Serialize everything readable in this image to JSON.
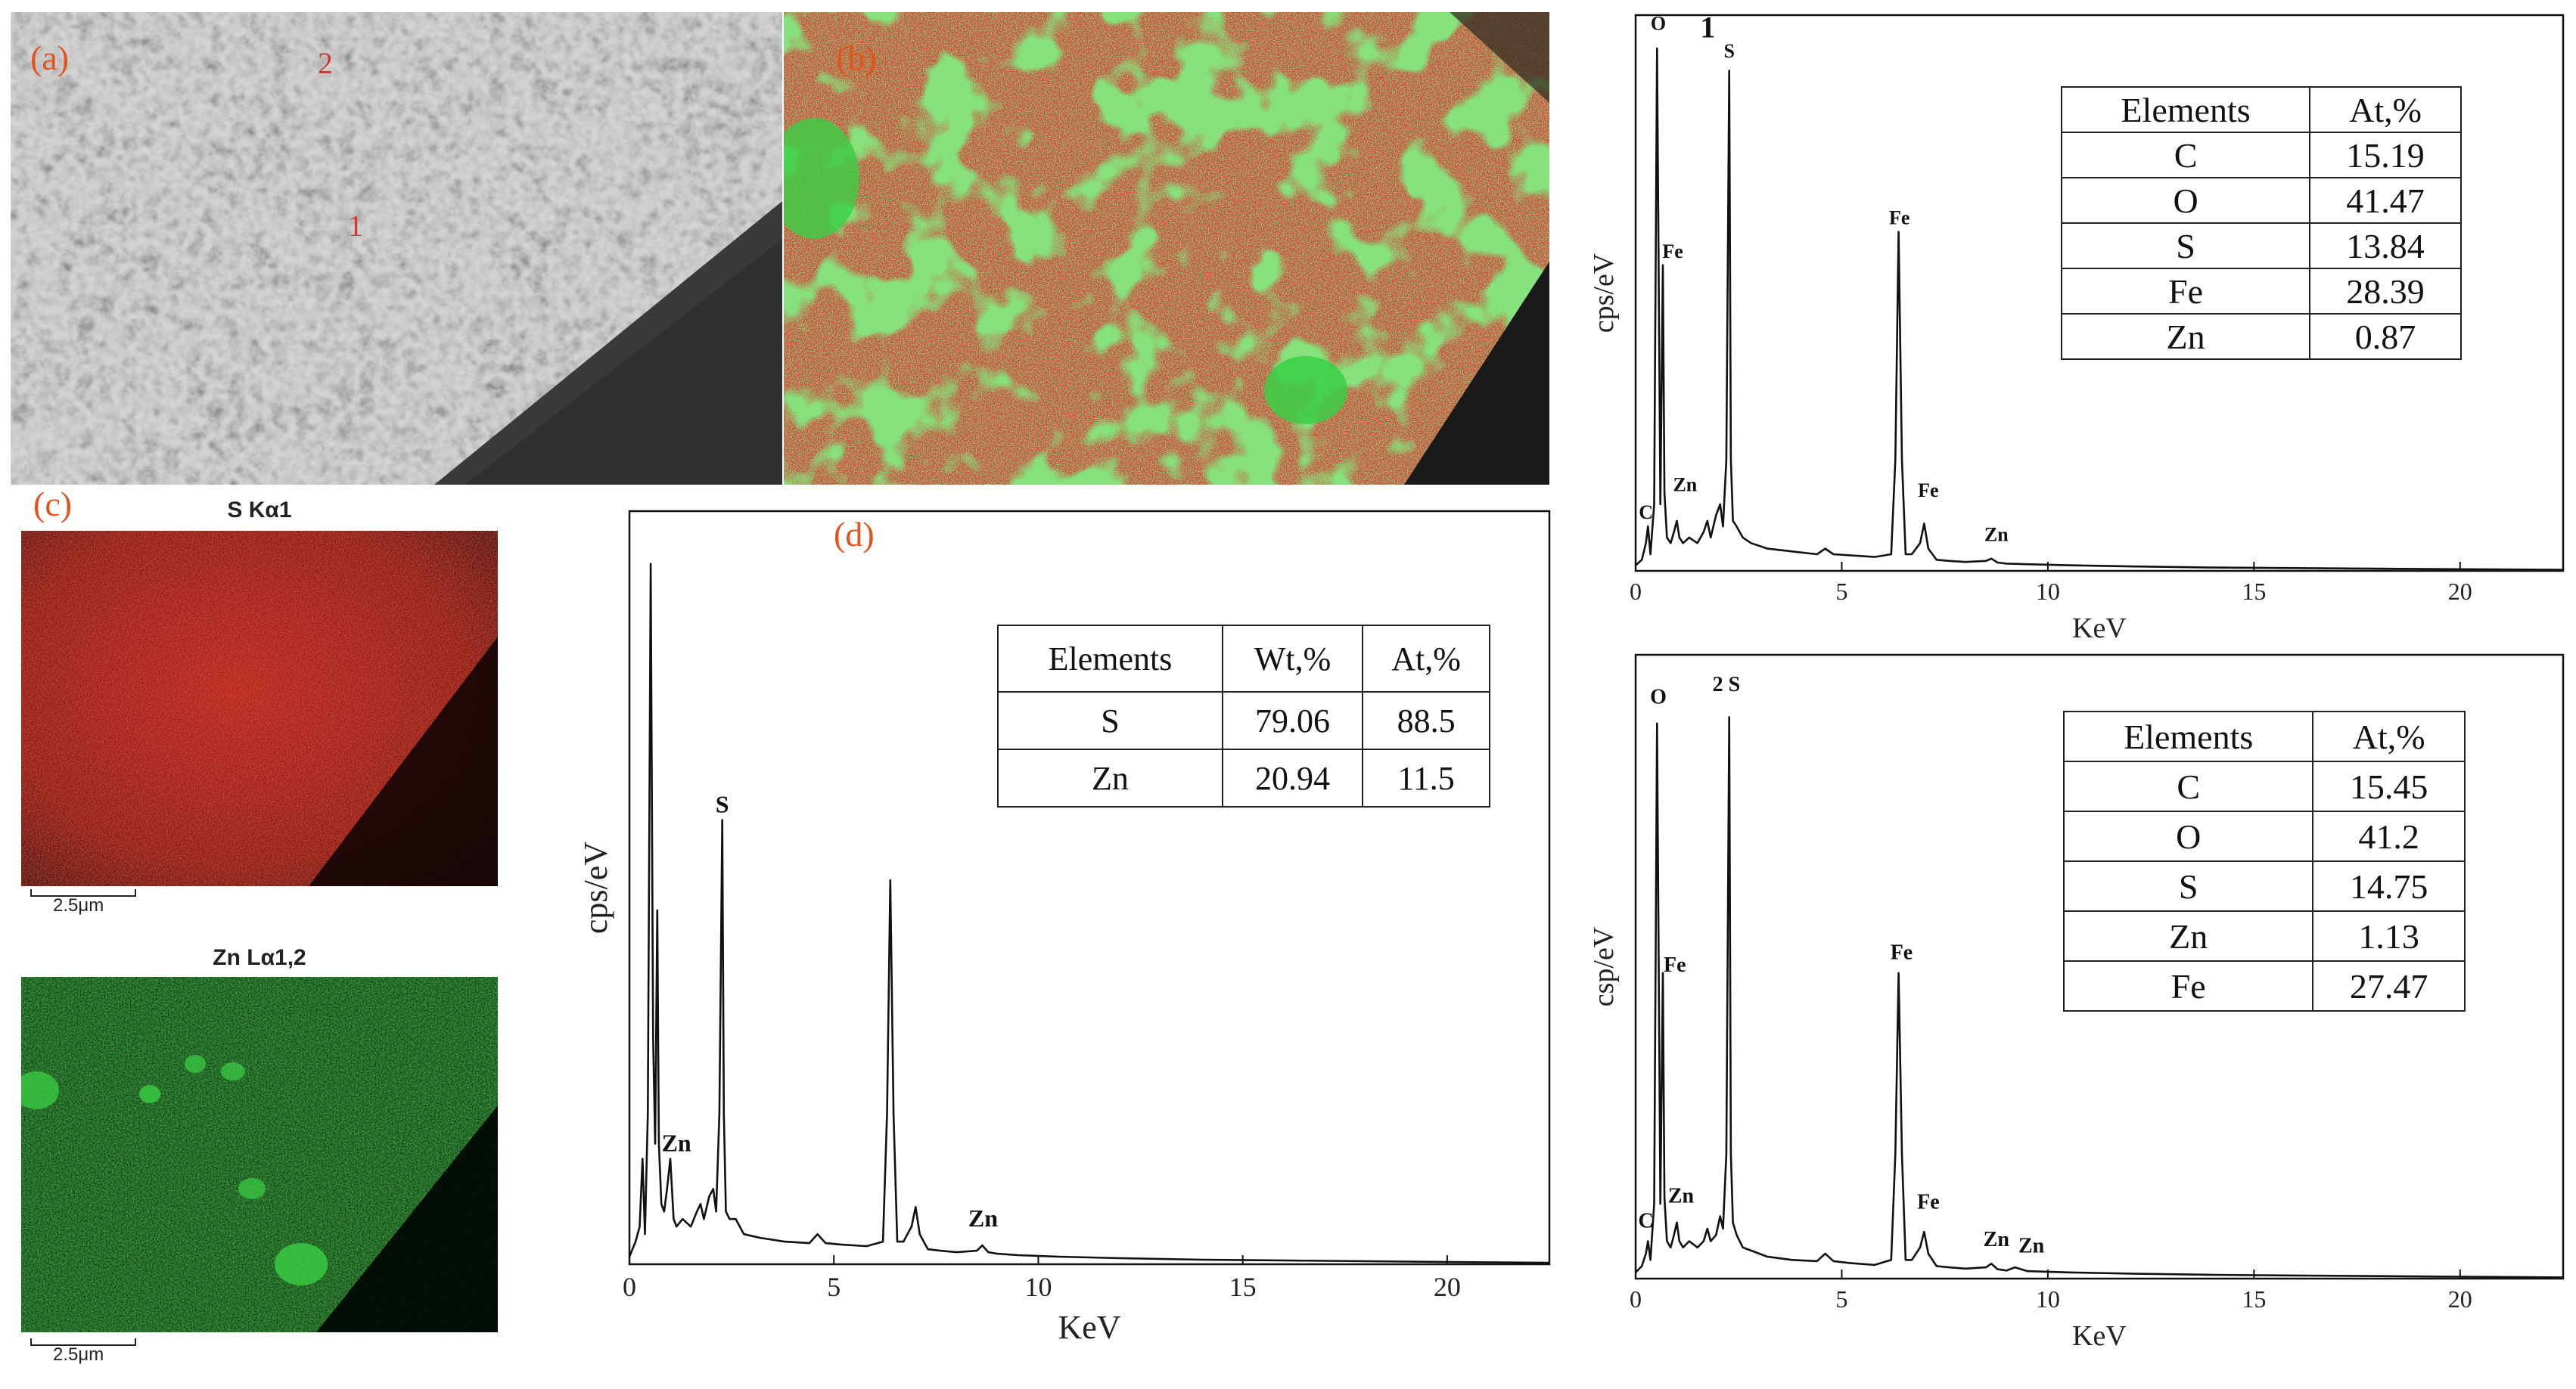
{
  "panel_labels": {
    "a": "(a)",
    "b": "(b)",
    "c": "(c)",
    "d": "(d)"
  },
  "sem_markers": {
    "m1": "1",
    "m2": "2"
  },
  "maps": {
    "s_title": "S Kα1",
    "zn_title": "Zn Lα1,2",
    "scalebar_s": "2.5μm",
    "scalebar_zn": "2.5μm"
  },
  "colors": {
    "panel_label": "#e0541e",
    "map_red": "#c81e12",
    "map_green": "#2ed03a",
    "line": "#111111"
  },
  "table_d": {
    "header": [
      "Elements",
      "Wt,%",
      "At,%"
    ],
    "rows": [
      [
        "S",
        "79.06",
        "88.5"
      ],
      [
        "Zn",
        "20.94",
        "11.5"
      ]
    ]
  },
  "table_1": {
    "header": [
      "Elements",
      "At,%"
    ],
    "rows": [
      [
        "C",
        "15.19"
      ],
      [
        "O",
        "41.47"
      ],
      [
        "S",
        "13.84"
      ],
      [
        "Fe",
        "28.39"
      ],
      [
        "Zn",
        "0.87"
      ]
    ]
  },
  "table_2": {
    "header": [
      "Elements",
      "At,%"
    ],
    "rows": [
      [
        "C",
        "15.45"
      ],
      [
        "O",
        "41.2"
      ],
      [
        "S",
        "14.75"
      ],
      [
        "Zn",
        "1.13"
      ],
      [
        "Fe",
        "27.47"
      ]
    ]
  },
  "chart_data": [
    {
      "id": "d",
      "type": "line",
      "xlabel": "KeV",
      "ylabel": "cps/eV",
      "xlim": [
        0,
        22.5
      ],
      "ylim": [
        0,
        1.0
      ],
      "xticks": [
        0,
        5,
        10,
        15,
        20
      ],
      "x": [
        0.0,
        0.15,
        0.25,
        0.32,
        0.38,
        0.45,
        0.52,
        0.58,
        0.63,
        0.68,
        0.72,
        0.78,
        0.85,
        0.92,
        1.0,
        1.08,
        1.15,
        1.3,
        1.5,
        1.65,
        1.74,
        1.82,
        1.95,
        2.05,
        2.12,
        2.2,
        2.27,
        2.31,
        2.36,
        2.45,
        2.6,
        2.8,
        3.2,
        3.8,
        4.4,
        4.6,
        4.8,
        5.2,
        5.8,
        6.2,
        6.3,
        6.38,
        6.46,
        6.55,
        6.7,
        6.9,
        7.0,
        7.1,
        7.3,
        7.6,
        8.0,
        8.5,
        8.63,
        8.78,
        9.0,
        9.5,
        10.5,
        12,
        14,
        16,
        18,
        20,
        22.5
      ],
      "values": [
        0.01,
        0.03,
        0.05,
        0.14,
        0.04,
        0.2,
        0.93,
        0.3,
        0.16,
        0.47,
        0.16,
        0.08,
        0.07,
        0.1,
        0.14,
        0.06,
        0.05,
        0.06,
        0.05,
        0.07,
        0.08,
        0.06,
        0.09,
        0.1,
        0.07,
        0.2,
        0.59,
        0.2,
        0.07,
        0.06,
        0.06,
        0.04,
        0.035,
        0.03,
        0.028,
        0.04,
        0.028,
        0.026,
        0.024,
        0.03,
        0.2,
        0.51,
        0.2,
        0.03,
        0.03,
        0.05,
        0.076,
        0.04,
        0.02,
        0.018,
        0.016,
        0.018,
        0.025,
        0.016,
        0.014,
        0.012,
        0.01,
        0.008,
        0.006,
        0.005,
        0.004,
        0.003,
        0.002
      ],
      "annotations": [
        {
          "text": "S",
          "x": 2.27,
          "y": 0.59
        },
        {
          "text": "Zn",
          "x": 1.15,
          "y": 0.14
        },
        {
          "text": "Zn",
          "x": 8.65,
          "y": 0.04
        }
      ]
    },
    {
      "id": "spot1",
      "type": "line",
      "title": "1",
      "xlabel": "KeV",
      "ylabel": "cps/eV",
      "xlim": [
        0,
        22.5
      ],
      "ylim": [
        0,
        1.0
      ],
      "xticks": [
        0,
        5,
        10,
        15,
        20
      ],
      "x": [
        0.0,
        0.15,
        0.25,
        0.3,
        0.36,
        0.45,
        0.52,
        0.6,
        0.66,
        0.7,
        0.76,
        0.85,
        0.93,
        1.0,
        1.06,
        1.15,
        1.3,
        1.5,
        1.65,
        1.74,
        1.82,
        1.95,
        2.05,
        2.12,
        2.2,
        2.27,
        2.31,
        2.36,
        2.45,
        2.6,
        2.8,
        3.2,
        3.8,
        4.4,
        4.6,
        4.8,
        5.2,
        5.8,
        6.2,
        6.3,
        6.38,
        6.46,
        6.55,
        6.7,
        6.9,
        7.0,
        7.1,
        7.3,
        7.6,
        8.0,
        8.5,
        8.63,
        8.78,
        9.0,
        9.5,
        10.5,
        12,
        14,
        16,
        18,
        20,
        22.5
      ],
      "values": [
        0.01,
        0.02,
        0.05,
        0.08,
        0.03,
        0.12,
        0.94,
        0.12,
        0.55,
        0.14,
        0.06,
        0.05,
        0.07,
        0.09,
        0.06,
        0.05,
        0.06,
        0.05,
        0.07,
        0.09,
        0.06,
        0.1,
        0.12,
        0.08,
        0.2,
        0.9,
        0.2,
        0.09,
        0.08,
        0.06,
        0.05,
        0.04,
        0.035,
        0.03,
        0.04,
        0.03,
        0.028,
        0.025,
        0.03,
        0.2,
        0.61,
        0.2,
        0.03,
        0.03,
        0.05,
        0.085,
        0.04,
        0.02,
        0.018,
        0.016,
        0.018,
        0.022,
        0.015,
        0.013,
        0.012,
        0.01,
        0.008,
        0.006,
        0.005,
        0.004,
        0.003,
        0.002
      ],
      "annotations": [
        {
          "text": "O",
          "x": 0.55,
          "y": 0.96
        },
        {
          "text": "S",
          "x": 2.27,
          "y": 0.91
        },
        {
          "text": "Fe",
          "x": 0.9,
          "y": 0.55
        },
        {
          "text": "Fe",
          "x": 6.4,
          "y": 0.61
        },
        {
          "text": "Fe",
          "x": 7.1,
          "y": 0.12
        },
        {
          "text": "C",
          "x": 0.25,
          "y": 0.08
        },
        {
          "text": "Zn",
          "x": 1.2,
          "y": 0.13
        },
        {
          "text": "Zn",
          "x": 8.75,
          "y": 0.04
        }
      ]
    },
    {
      "id": "spot2",
      "type": "line",
      "title": "2",
      "xlabel": "KeV",
      "ylabel": "csp/eV",
      "xlim": [
        0,
        22.5
      ],
      "ylim": [
        0,
        1.0
      ],
      "xticks": [
        0,
        5,
        10,
        15,
        20
      ],
      "x": [
        0.0,
        0.15,
        0.25,
        0.3,
        0.36,
        0.45,
        0.52,
        0.6,
        0.66,
        0.7,
        0.76,
        0.85,
        0.93,
        1.0,
        1.06,
        1.15,
        1.3,
        1.5,
        1.65,
        1.74,
        1.82,
        1.95,
        2.05,
        2.12,
        2.2,
        2.27,
        2.31,
        2.36,
        2.45,
        2.6,
        2.8,
        3.2,
        3.8,
        4.4,
        4.6,
        4.8,
        5.2,
        5.8,
        6.2,
        6.3,
        6.38,
        6.46,
        6.55,
        6.7,
        6.9,
        7.0,
        7.1,
        7.3,
        7.6,
        8.0,
        8.5,
        8.63,
        8.78,
        9.0,
        9.2,
        9.5,
        10.5,
        12,
        14,
        16,
        18,
        20,
        22.5
      ],
      "values": [
        0.01,
        0.02,
        0.04,
        0.06,
        0.03,
        0.12,
        0.89,
        0.12,
        0.49,
        0.13,
        0.06,
        0.05,
        0.07,
        0.09,
        0.06,
        0.05,
        0.06,
        0.05,
        0.06,
        0.08,
        0.06,
        0.07,
        0.1,
        0.08,
        0.2,
        0.9,
        0.2,
        0.09,
        0.07,
        0.05,
        0.045,
        0.035,
        0.03,
        0.028,
        0.04,
        0.028,
        0.025,
        0.022,
        0.03,
        0.2,
        0.49,
        0.2,
        0.03,
        0.03,
        0.05,
        0.075,
        0.04,
        0.02,
        0.018,
        0.016,
        0.018,
        0.024,
        0.015,
        0.013,
        0.018,
        0.012,
        0.01,
        0.008,
        0.006,
        0.005,
        0.004,
        0.003,
        0.002
      ],
      "annotations": [
        {
          "text": "O",
          "x": 0.55,
          "y": 0.91
        },
        {
          "text": "2 S",
          "x": 2.2,
          "y": 0.93
        },
        {
          "text": "Fe",
          "x": 0.95,
          "y": 0.48
        },
        {
          "text": "Fe",
          "x": 6.45,
          "y": 0.5
        },
        {
          "text": "Fe",
          "x": 7.1,
          "y": 0.1
        },
        {
          "text": "C",
          "x": 0.25,
          "y": 0.07
        },
        {
          "text": "Zn",
          "x": 1.1,
          "y": 0.11
        },
        {
          "text": "Zn",
          "x": 8.75,
          "y": 0.04
        },
        {
          "text": "Zn",
          "x": 9.6,
          "y": 0.03
        }
      ]
    }
  ]
}
